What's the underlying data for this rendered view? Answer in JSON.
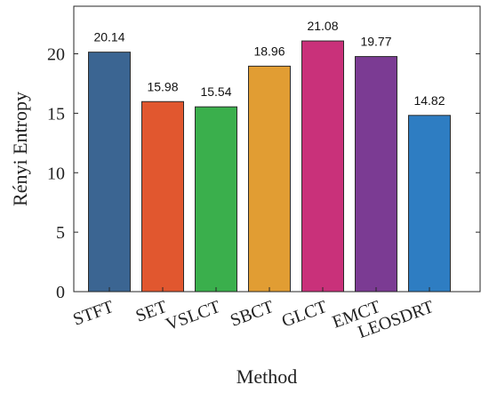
{
  "chart_data": {
    "type": "bar",
    "title": "",
    "xlabel": "Method",
    "ylabel": "Rényi Entropy",
    "categories": [
      "STFT",
      "SET",
      "VSLCT",
      "SBCT",
      "GLCT",
      "EMCT",
      "LEOSDRT"
    ],
    "values": [
      20.14,
      15.98,
      15.54,
      18.96,
      21.08,
      19.77,
      14.82
    ],
    "value_labels": [
      "20.14",
      "15.98",
      "15.54",
      "18.96",
      "21.08",
      "19.77",
      "14.82"
    ],
    "colors": [
      "#3b6592",
      "#e1572f",
      "#3aaf4c",
      "#e19d33",
      "#c9317a",
      "#7b3b93",
      "#2e7dc2"
    ],
    "ylim": [
      0,
      24
    ],
    "yticks": [
      0,
      5,
      10,
      15,
      20
    ],
    "grid": false,
    "legend": "none"
  }
}
